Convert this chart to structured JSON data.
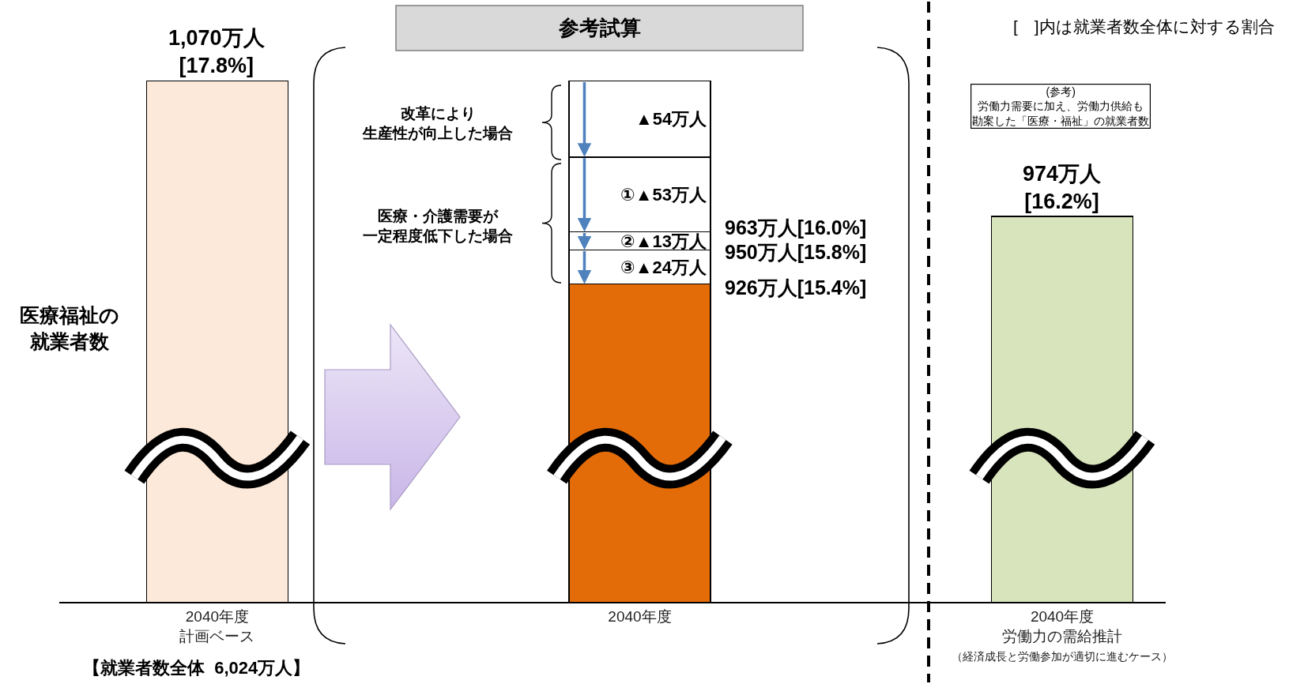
{
  "chart_data": {
    "type": "bar",
    "stacked": true,
    "categories": [
      "2040年度計画ベース",
      "2040年度",
      "2040年度労働力の需給推計（経済成長と労働参加が適切に進むケース）"
    ],
    "ylabel": "医療福祉の就業者数",
    "series": [
      {
        "colors": [
          "#fde9d9",
          "#e36c09",
          "#d7e4bc"
        ],
        "values": [
          1070,
          926,
          974
        ],
        "value_labels": [
          "1,070万人[17.8%]",
          null,
          "974万人[16.2%]"
        ]
      },
      {
        "color": "#ffffff",
        "values": [
          null,
          24,
          null
        ],
        "value_labels": [
          null,
          "③▲24万人",
          null
        ]
      },
      {
        "color": "#ffffff",
        "values": [
          null,
          13,
          null
        ],
        "value_labels": [
          null,
          "②▲13万人",
          null
        ]
      },
      {
        "color": "#ffffff",
        "values": [
          null,
          53,
          null
        ],
        "value_labels": [
          null,
          "①▲53万人",
          null
        ]
      },
      {
        "color": "#ffffff",
        "values": [
          null,
          54,
          null
        ],
        "value_labels": [
          null,
          "▲54万人",
          null
        ]
      }
    ],
    "annotations": [
      "参考試算",
      "[　]内は就業者数全体に対する割合",
      "(参考)労働力需要に加え、労働力供給も勘案した「医療・福祉」の就業者数",
      "【就業者数全体  6,024万人】",
      "改革により生産性が向上した場合",
      "医療・介護需要が一定程度低下した場合",
      "950万人[15.8%]",
      "963万人[16.0%]",
      "926万人[15.4%]"
    ]
  }
}
